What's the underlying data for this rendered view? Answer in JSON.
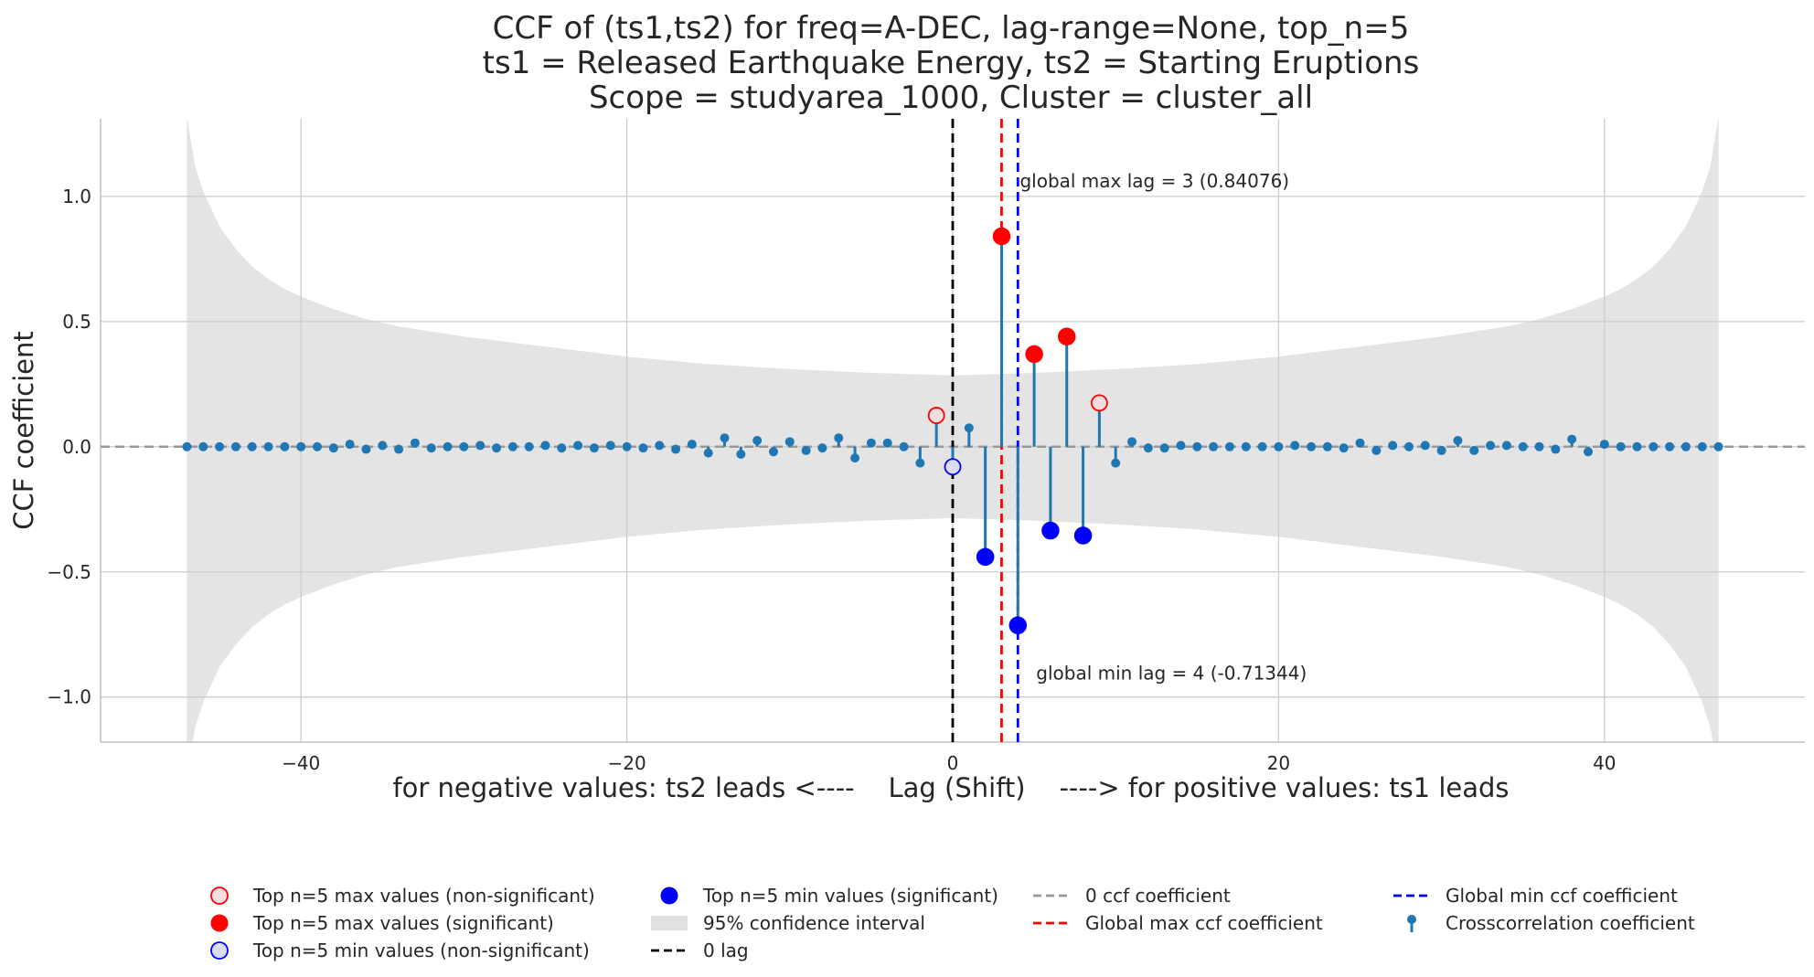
{
  "chart_data": {
    "type": "stem",
    "title_lines": [
      "CCF of (ts1,ts2) for freq=A-DEC, lag-range=None, top_n=5",
      "ts1 = Released Earthquake Energy, ts2 = Starting Eruptions",
      "Scope = studyarea_1000, Cluster = cluster_all"
    ],
    "xlabel": "for negative values: ts2 leads <----    Lag (Shift)    ----> for positive values: ts1 leads",
    "ylabel": "CCF coefficient",
    "xlim": [
      -52.3,
      52.3
    ],
    "ylim": [
      -1.18,
      1.31
    ],
    "x_ticks": [
      -40,
      -20,
      0,
      20,
      40
    ],
    "x_tick_labels": [
      "−40",
      "−20",
      "0",
      "20",
      "40"
    ],
    "y_ticks": [
      1.0,
      0.5,
      0.0,
      -0.5,
      -1.0
    ],
    "y_tick_labels": [
      "1.0",
      "0.5",
      "0.0",
      "−0.5",
      "−1.0"
    ],
    "grid": true,
    "lags": [
      -47,
      -46,
      -45,
      -44,
      -43,
      -42,
      -41,
      -40,
      -39,
      -38,
      -37,
      -36,
      -35,
      -34,
      -33,
      -32,
      -31,
      -30,
      -29,
      -28,
      -27,
      -26,
      -25,
      -24,
      -23,
      -22,
      -21,
      -20,
      -19,
      -18,
      -17,
      -16,
      -15,
      -14,
      -13,
      -12,
      -11,
      -10,
      -9,
      -8,
      -7,
      -6,
      -5,
      -4,
      -3,
      -2,
      -1,
      0,
      1,
      2,
      3,
      4,
      5,
      6,
      7,
      8,
      9,
      10,
      11,
      12,
      13,
      14,
      15,
      16,
      17,
      18,
      19,
      20,
      21,
      22,
      23,
      24,
      25,
      26,
      27,
      28,
      29,
      30,
      31,
      32,
      33,
      34,
      35,
      36,
      37,
      38,
      39,
      40,
      41,
      42,
      43,
      44,
      45,
      46,
      47
    ],
    "ccf": [
      0.0,
      0.0,
      0.0,
      0.0,
      0.0,
      0.0,
      0.0,
      0.0,
      0.0,
      -0.005,
      0.01,
      -0.01,
      0.005,
      -0.01,
      0.015,
      -0.005,
      0.0,
      0.0,
      0.005,
      -0.005,
      0.0,
      0.0,
      0.005,
      -0.005,
      0.005,
      -0.005,
      0.005,
      0.0,
      -0.005,
      0.005,
      -0.01,
      0.01,
      -0.025,
      0.035,
      -0.03,
      0.025,
      -0.02,
      0.02,
      -0.015,
      -0.005,
      0.035,
      -0.045,
      0.015,
      0.015,
      0.0,
      -0.065,
      0.125,
      -0.08,
      0.075,
      -0.44,
      0.84076,
      -0.71344,
      0.37,
      -0.335,
      0.44,
      -0.355,
      0.175,
      -0.065,
      0.02,
      -0.005,
      -0.005,
      0.005,
      0.0,
      0.0,
      0.0,
      0.0,
      0.0,
      0.0,
      0.005,
      0.0,
      0.0,
      -0.005,
      0.015,
      -0.015,
      0.005,
      0.0,
      0.005,
      -0.015,
      0.025,
      -0.015,
      0.005,
      0.005,
      0.0,
      0.0,
      -0.01,
      0.03,
      -0.02,
      0.01,
      0.0,
      0.0,
      0.0,
      0.0,
      0.0,
      0.0,
      0.0
    ],
    "confidence_interval": {
      "label": "95% confidence interval",
      "lags": [
        -47,
        -46.5,
        -46,
        -45,
        -44,
        -43,
        -42,
        -41,
        -40,
        -38,
        -36,
        -34,
        -32,
        -30,
        -25,
        -20,
        -15,
        -10,
        -5,
        0,
        5,
        10,
        15,
        20,
        25,
        30,
        32,
        34,
        36,
        38,
        40,
        41,
        42,
        43,
        44,
        45,
        46,
        46.5,
        47
      ],
      "upper": [
        1.32,
        1.12,
        1.02,
        0.88,
        0.79,
        0.72,
        0.67,
        0.63,
        0.6,
        0.55,
        0.51,
        0.48,
        0.46,
        0.44,
        0.4,
        0.36,
        0.33,
        0.31,
        0.295,
        0.285,
        0.295,
        0.31,
        0.33,
        0.36,
        0.4,
        0.44,
        0.46,
        0.48,
        0.51,
        0.55,
        0.6,
        0.63,
        0.67,
        0.72,
        0.79,
        0.88,
        1.02,
        1.12,
        1.32
      ]
    },
    "global_max": {
      "lag": 3,
      "value": 0.84076,
      "label": "global max lag = 3 (0.84076)"
    },
    "global_min": {
      "lag": 4,
      "value": -0.71344,
      "label": "global min lag = 4 (-0.71344)"
    },
    "top_max_significant": [
      [
        3,
        0.84076
      ],
      [
        5,
        0.37
      ],
      [
        7,
        0.44
      ]
    ],
    "top_max_nonsignificant": [
      [
        -1,
        0.125
      ],
      [
        9,
        0.175
      ]
    ],
    "top_min_significant": [
      [
        2,
        -0.44
      ],
      [
        4,
        -0.71344
      ],
      [
        6,
        -0.335
      ],
      [
        8,
        -0.355
      ]
    ],
    "top_min_nonsignificant": [
      [
        0,
        -0.08
      ]
    ],
    "legend": [
      {
        "key": "max_ns",
        "label": "Top n=5 max values (non-significant)"
      },
      {
        "key": "max_s",
        "label": "Top n=5 max values (significant)"
      },
      {
        "key": "min_ns",
        "label": "Top n=5 min values (non-significant)"
      },
      {
        "key": "min_s",
        "label": "Top n=5 min values (significant)"
      },
      {
        "key": "ci",
        "label": "95% confidence interval"
      },
      {
        "key": "zero_lag",
        "label": "0 lag"
      },
      {
        "key": "zero_ccf",
        "label": "0 ccf coefficient"
      },
      {
        "key": "gmax",
        "label": "Global max ccf coefficient"
      },
      {
        "key": "gmin",
        "label": "Global min ccf coefficient"
      },
      {
        "key": "stem",
        "label": "Crosscorrelation coefficient"
      }
    ],
    "legend_placement": "bottom-center",
    "colors": {
      "stem": "#1f77b4",
      "max": "#ff0000",
      "min": "#0000ff",
      "ci": "#d9d9d9",
      "zero_line": "#999999",
      "zero_lag": "#000000",
      "max_ns_face": "#f2dede",
      "min_ns_face": "#dcdcf0"
    }
  }
}
